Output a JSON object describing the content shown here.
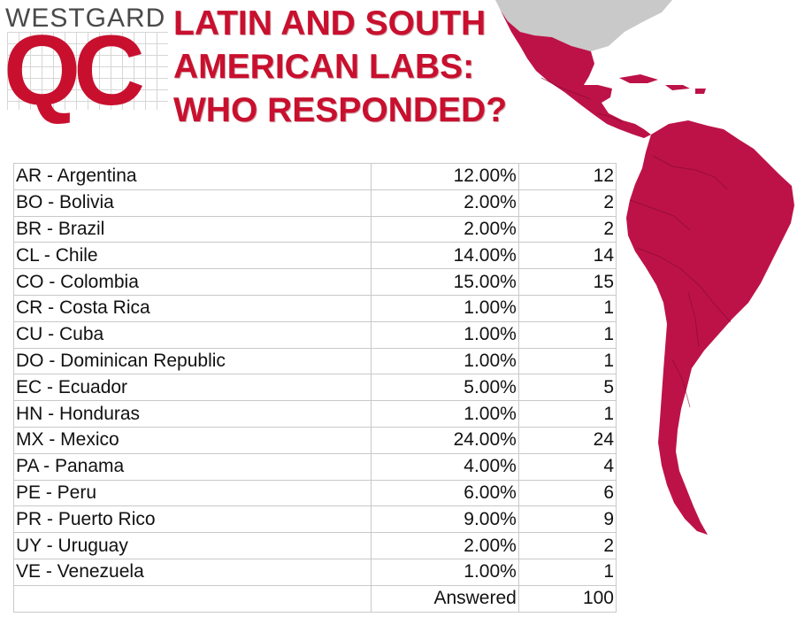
{
  "brand": {
    "top": "WESTGARD",
    "logo": "QC"
  },
  "title": {
    "line1": "LATIN AND SOUTH",
    "line2": "AMERICAN LABS:",
    "line3": "WHO RESPONDED?"
  },
  "colors": {
    "accent": "#c8102e",
    "map_land": "#bd1248",
    "map_north": "#c9c9c9"
  },
  "table": {
    "rows": [
      {
        "country": "AR - Argentina",
        "percent": "12.00%",
        "count": "12"
      },
      {
        "country": "BO - Bolivia",
        "percent": "2.00%",
        "count": "2"
      },
      {
        "country": "BR - Brazil",
        "percent": "2.00%",
        "count": "2"
      },
      {
        "country": "CL - Chile",
        "percent": "14.00%",
        "count": "14"
      },
      {
        "country": "CO - Colombia",
        "percent": "15.00%",
        "count": "15"
      },
      {
        "country": "CR - Costa Rica",
        "percent": "1.00%",
        "count": "1"
      },
      {
        "country": "CU - Cuba",
        "percent": "1.00%",
        "count": "1"
      },
      {
        "country": "DO - Dominican Republic",
        "percent": "1.00%",
        "count": "1"
      },
      {
        "country": "EC - Ecuador",
        "percent": "5.00%",
        "count": "5"
      },
      {
        "country": "HN - Honduras",
        "percent": "1.00%",
        "count": "1"
      },
      {
        "country": "MX - Mexico",
        "percent": "24.00%",
        "count": "24"
      },
      {
        "country": "PA - Panama",
        "percent": "4.00%",
        "count": "4"
      },
      {
        "country": "PE - Peru",
        "percent": "6.00%",
        "count": "6"
      },
      {
        "country": "PR - Puerto Rico",
        "percent": "9.00%",
        "count": "9"
      },
      {
        "country": "UY - Uruguay",
        "percent": "2.00%",
        "count": "2"
      },
      {
        "country": "VE - Venezuela",
        "percent": "1.00%",
        "count": "1"
      }
    ],
    "total_label": "Answered",
    "total_value": "100"
  }
}
